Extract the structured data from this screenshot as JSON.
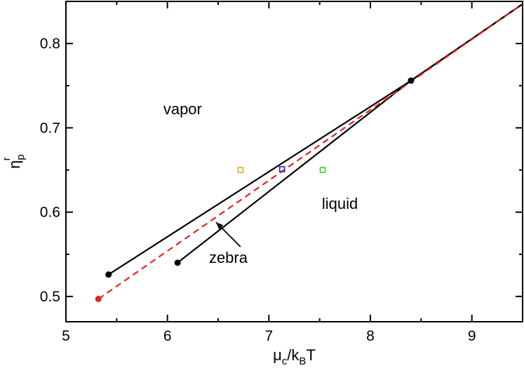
{
  "chart_data": {
    "type": "line",
    "xlim": [
      5,
      9.5
    ],
    "ylim": [
      0.47,
      0.85
    ],
    "x_ticks": [
      "5",
      "6",
      "7",
      "8",
      "9"
    ],
    "y_ticks": [
      "0.5",
      "0.6",
      "0.7",
      "0.8"
    ],
    "x_tick_values": [
      5,
      6,
      7,
      8,
      9
    ],
    "y_tick_values": [
      0.5,
      0.6,
      0.7,
      0.8
    ],
    "x_minor_step": 0.5,
    "y_minor_step": 0.05,
    "xlabel": {
      "main": "μ",
      "sub1": "c",
      "mid": "/k",
      "sub2": "B",
      "tail": "T"
    },
    "ylabel": {
      "main": "η",
      "sup": "r",
      "sub": "p"
    },
    "series": [
      {
        "style": "solid",
        "color": "#000000",
        "x": [
          5.42,
          8.4,
          9.55
        ],
        "y": [
          0.526,
          0.756,
          0.851
        ]
      },
      {
        "style": "solid",
        "color": "#000000",
        "x": [
          6.1,
          8.4,
          9.55
        ],
        "y": [
          0.54,
          0.756,
          0.851
        ]
      },
      {
        "style": "dashed",
        "color": "#e8231f",
        "x": [
          5.32,
          9.55
        ],
        "y": [
          0.497,
          0.851
        ]
      }
    ],
    "markers": [
      {
        "shape": "dot",
        "color": "#000000",
        "x": 5.42,
        "y": 0.526
      },
      {
        "shape": "dot",
        "color": "#000000",
        "x": 6.1,
        "y": 0.54
      },
      {
        "shape": "dot",
        "color": "#000000",
        "x": 8.4,
        "y": 0.756
      },
      {
        "shape": "dot",
        "color": "#e8231f",
        "x": 5.32,
        "y": 0.497
      },
      {
        "shape": "square",
        "color": "#f5a623",
        "x": 6.72,
        "y": 0.65
      },
      {
        "shape": "square",
        "color": "#1f1fd0",
        "x": 7.13,
        "y": 0.651
      },
      {
        "shape": "square",
        "color": "#3ad13a",
        "x": 7.53,
        "y": 0.65
      }
    ],
    "annotations": [
      {
        "text": "vapor",
        "x": 6.15,
        "y": 0.716
      },
      {
        "text": "liquid",
        "x": 7.7,
        "y": 0.604
      },
      {
        "text": "zebra",
        "x": 6.6,
        "y": 0.54
      }
    ],
    "arrow": {
      "from": [
        6.72,
        0.559
      ],
      "to": [
        6.48,
        0.588
      ]
    }
  }
}
